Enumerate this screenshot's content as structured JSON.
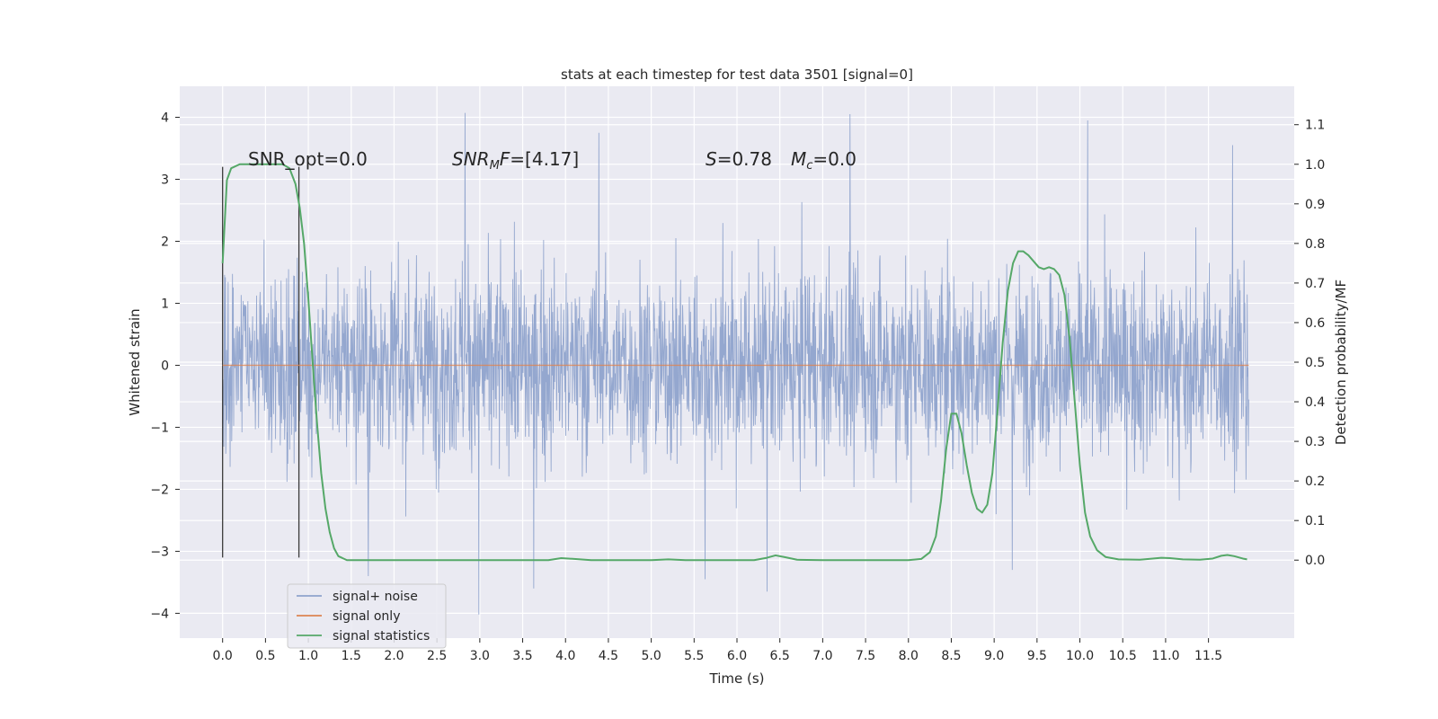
{
  "chart_data": {
    "type": "line",
    "title": "stats at each timestep for test data 3501 [signal=0]",
    "xlabel": "Time (s)",
    "ylabel": "Whitened strain",
    "y2label": "Detection probability/MF",
    "xlim": [
      -0.5,
      12.5
    ],
    "ylim": [
      -4.4,
      4.5
    ],
    "y2lim": [
      -0.197,
      1.197
    ],
    "xticks": [
      "0.0",
      "0.5",
      "1.0",
      "1.5",
      "2.0",
      "2.5",
      "3.0",
      "3.5",
      "4.0",
      "4.5",
      "5.0",
      "5.5",
      "6.0",
      "6.5",
      "7.0",
      "7.5",
      "8.0",
      "8.5",
      "9.0",
      "9.5",
      "10.0",
      "10.5",
      "11.0",
      "11.5"
    ],
    "xtick_values": [
      0,
      0.5,
      1,
      1.5,
      2,
      2.5,
      3,
      3.5,
      4,
      4.5,
      5,
      5.5,
      6,
      6.5,
      7,
      7.5,
      8,
      8.5,
      9,
      9.5,
      10,
      10.5,
      11,
      11.5
    ],
    "yticks": [
      "−4",
      "−3",
      "−2",
      "−1",
      "0",
      "1",
      "2",
      "3",
      "4"
    ],
    "ytick_values": [
      -4,
      -3,
      -2,
      -1,
      0,
      1,
      2,
      3,
      4
    ],
    "y2ticks": [
      "0.0",
      "0.1",
      "0.2",
      "0.3",
      "0.4",
      "0.5",
      "0.6",
      "0.7",
      "0.8",
      "0.9",
      "1.0",
      "1.1"
    ],
    "y2tick_values": [
      0,
      0.1,
      0.2,
      0.3,
      0.4,
      0.5,
      0.6,
      0.7,
      0.8,
      0.9,
      1.0,
      1.1
    ],
    "grid": true,
    "legend_position": "lower-left",
    "annotations": {
      "snr_opt": "SNR_opt=0.0",
      "snr_mf_var": "SNR",
      "snr_mf_sub": "M",
      "snr_mf_rest_italic": "F",
      "snr_mf_value": "=[4.17]",
      "s_var": "S",
      "s_value": "=0.78",
      "mc_var": "M",
      "mc_sub": "c",
      "mc_value": "=0.0"
    },
    "vertical_markers": [
      0.0,
      0.89
    ],
    "series": [
      {
        "name": "signal+ noise",
        "color": "#8fa3cc",
        "t_range": [
          0.0,
          11.97
        ],
        "typical_amplitude": 1.35,
        "peaks": [
          {
            "t": 2.83,
            "v": 4.07
          },
          {
            "t": 4.39,
            "v": 3.75
          },
          {
            "t": 7.32,
            "v": 4.05
          },
          {
            "t": 10.09,
            "v": 3.95
          },
          {
            "t": 11.78,
            "v": 3.55
          },
          {
            "t": 2.99,
            "v": -4.02
          },
          {
            "t": 6.35,
            "v": -3.65
          },
          {
            "t": 3.63,
            "v": -3.6
          },
          {
            "t": 1.7,
            "v": -3.4
          },
          {
            "t": 5.63,
            "v": -3.45
          },
          {
            "t": 9.21,
            "v": -3.3
          }
        ]
      },
      {
        "name": "signal only",
        "color": "#dd8452",
        "value": 0.0
      },
      {
        "name": "signal statistics",
        "color": "#55a868",
        "axis": "right",
        "points": [
          [
            0.0,
            0.75
          ],
          [
            0.05,
            0.96
          ],
          [
            0.1,
            0.99
          ],
          [
            0.2,
            1.0
          ],
          [
            0.3,
            1.0
          ],
          [
            0.4,
            1.0
          ],
          [
            0.5,
            1.0
          ],
          [
            0.6,
            1.0
          ],
          [
            0.7,
            1.0
          ],
          [
            0.78,
            0.99
          ],
          [
            0.85,
            0.95
          ],
          [
            0.9,
            0.89
          ],
          [
            0.95,
            0.8
          ],
          [
            1.0,
            0.66
          ],
          [
            1.05,
            0.5
          ],
          [
            1.1,
            0.35
          ],
          [
            1.15,
            0.22
          ],
          [
            1.2,
            0.13
          ],
          [
            1.25,
            0.07
          ],
          [
            1.3,
            0.03
          ],
          [
            1.35,
            0.01
          ],
          [
            1.45,
            0.0
          ],
          [
            2.0,
            0.0
          ],
          [
            3.0,
            0.0
          ],
          [
            3.8,
            0.0
          ],
          [
            3.95,
            0.005
          ],
          [
            4.1,
            0.003
          ],
          [
            4.3,
            0.0
          ],
          [
            5.0,
            0.0
          ],
          [
            5.2,
            0.002
          ],
          [
            5.4,
            0.0
          ],
          [
            6.2,
            0.0
          ],
          [
            6.35,
            0.006
          ],
          [
            6.45,
            0.012
          ],
          [
            6.55,
            0.008
          ],
          [
            6.7,
            0.001
          ],
          [
            7.0,
            0.0
          ],
          [
            8.0,
            0.0
          ],
          [
            8.15,
            0.003
          ],
          [
            8.25,
            0.02
          ],
          [
            8.32,
            0.06
          ],
          [
            8.38,
            0.15
          ],
          [
            8.44,
            0.28
          ],
          [
            8.5,
            0.37
          ],
          [
            8.56,
            0.37
          ],
          [
            8.62,
            0.32
          ],
          [
            8.68,
            0.24
          ],
          [
            8.74,
            0.17
          ],
          [
            8.8,
            0.13
          ],
          [
            8.86,
            0.12
          ],
          [
            8.92,
            0.14
          ],
          [
            8.98,
            0.22
          ],
          [
            9.04,
            0.38
          ],
          [
            9.1,
            0.55
          ],
          [
            9.16,
            0.68
          ],
          [
            9.22,
            0.75
          ],
          [
            9.28,
            0.78
          ],
          [
            9.34,
            0.78
          ],
          [
            9.4,
            0.77
          ],
          [
            9.46,
            0.755
          ],
          [
            9.52,
            0.74
          ],
          [
            9.58,
            0.735
          ],
          [
            9.64,
            0.74
          ],
          [
            9.7,
            0.735
          ],
          [
            9.76,
            0.72
          ],
          [
            9.82,
            0.67
          ],
          [
            9.88,
            0.56
          ],
          [
            9.94,
            0.4
          ],
          [
            10.0,
            0.24
          ],
          [
            10.06,
            0.12
          ],
          [
            10.12,
            0.06
          ],
          [
            10.2,
            0.025
          ],
          [
            10.3,
            0.008
          ],
          [
            10.45,
            0.002
          ],
          [
            10.7,
            0.001
          ],
          [
            10.85,
            0.004
          ],
          [
            10.95,
            0.006
          ],
          [
            11.05,
            0.005
          ],
          [
            11.2,
            0.002
          ],
          [
            11.4,
            0.001
          ],
          [
            11.55,
            0.004
          ],
          [
            11.65,
            0.011
          ],
          [
            11.72,
            0.013
          ],
          [
            11.8,
            0.01
          ],
          [
            11.9,
            0.004
          ],
          [
            11.95,
            0.002
          ]
        ]
      }
    ]
  }
}
